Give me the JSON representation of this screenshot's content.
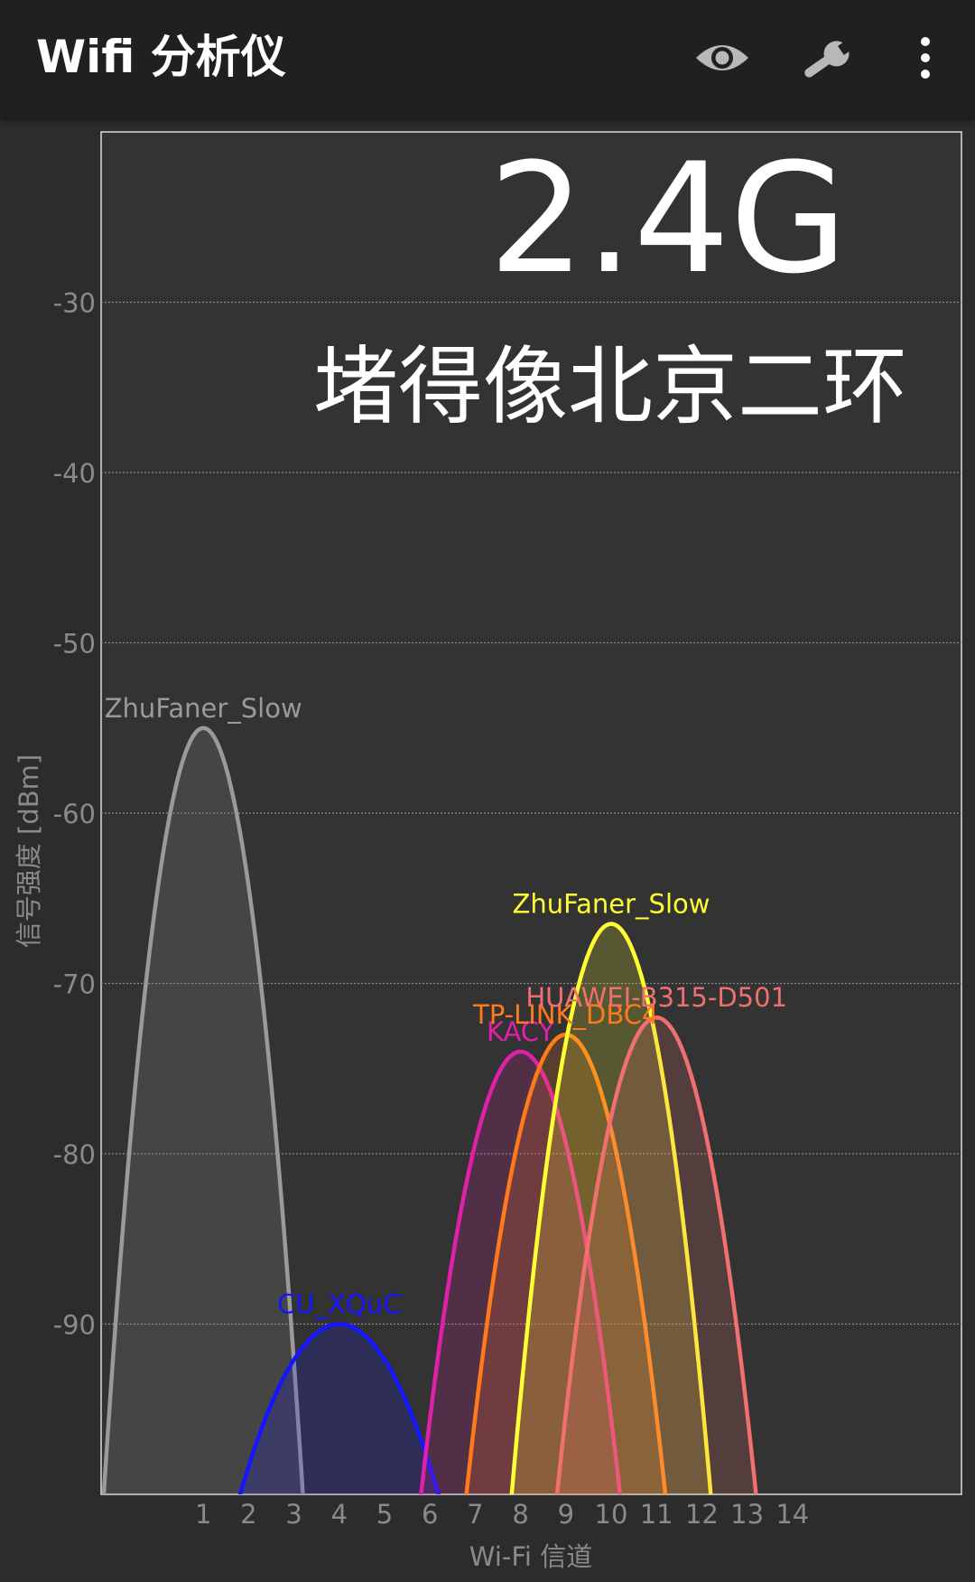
{
  "app_bar": {
    "title": "Wifi 分析仪",
    "actions": [
      {
        "name": "eye-icon",
        "label": ""
      },
      {
        "name": "wrench-icon",
        "label": ""
      },
      {
        "name": "more-vert-icon",
        "label": ""
      }
    ]
  },
  "overlay": {
    "band": "2.4G",
    "caption": "堵得像北京二环"
  },
  "chart_data": {
    "type": "area",
    "xlabel": "Wi-Fi 信道",
    "ylabel": "信号强度 [dBm]",
    "ylim": [
      -100,
      -20
    ],
    "yticks": [
      -30,
      -40,
      -50,
      -60,
      -70,
      -80,
      -90
    ],
    "xticks": [
      1,
      2,
      3,
      4,
      5,
      6,
      7,
      8,
      9,
      10,
      11,
      12,
      13,
      14
    ],
    "grid": true,
    "series": [
      {
        "name": "ZhuFaner_Slow",
        "channel": 1,
        "signal_dbm": -55,
        "color": "#9a9a9a"
      },
      {
        "name": "CU_XQuC",
        "channel": 4,
        "signal_dbm": -90,
        "color": "#1515ff"
      },
      {
        "name": "KACY",
        "channel": 8,
        "signal_dbm": -74,
        "color": "#e020a8"
      },
      {
        "name": "TP-LINK_DBC4",
        "channel": 9,
        "signal_dbm": -73,
        "color": "#ff7a1a"
      },
      {
        "name": "ZhuFaner_Slow",
        "channel": 10,
        "signal_dbm": -66.5,
        "color": "#ffff33"
      },
      {
        "name": "HUAWEI-B315-D501",
        "channel": 11,
        "signal_dbm": -72,
        "color": "#f07070"
      }
    ]
  }
}
